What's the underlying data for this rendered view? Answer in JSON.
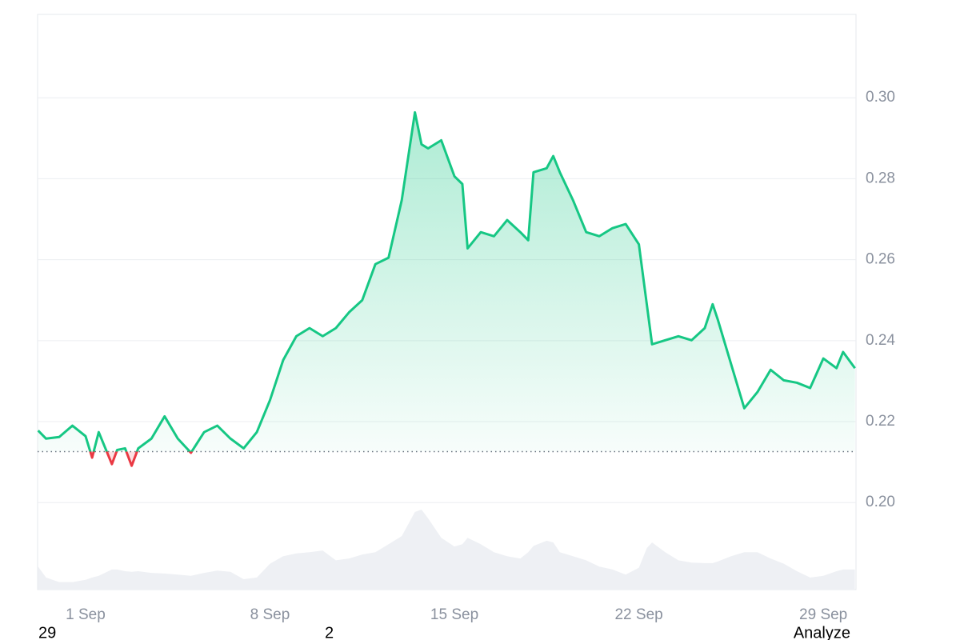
{
  "chart_data": {
    "type": "line",
    "x": [
      -0.8,
      -0.5,
      0,
      0.5,
      1,
      1.25,
      1.5,
      2,
      2.2,
      2.5,
      2.75,
      3,
      3.5,
      4,
      4.5,
      5,
      5.5,
      6,
      6.5,
      7,
      7.5,
      8,
      8.5,
      9,
      9.5,
      10,
      10.5,
      11,
      11.5,
      12,
      12.5,
      13,
      13.5,
      13.75,
      14,
      14.5,
      15,
      15.3,
      15.5,
      16,
      16.5,
      17,
      17.5,
      17.8,
      18,
      18.5,
      18.75,
      19,
      19.5,
      20,
      20.5,
      21,
      21.5,
      22,
      22.3,
      22.5,
      23,
      23.5,
      24,
      24.5,
      24.8,
      25,
      25.5,
      26,
      26.5,
      27,
      27.5,
      28,
      28.5,
      29,
      29.5,
      29.75,
      30.2
    ],
    "xlim": [
      -0.82,
      30.24
    ],
    "xticks": [
      {
        "value": 1,
        "label": "1 Sep"
      },
      {
        "value": 8,
        "label": "8 Sep"
      },
      {
        "value": 15,
        "label": "15 Sep"
      },
      {
        "value": 22,
        "label": "22 Sep"
      },
      {
        "value": 29,
        "label": "29 Sep"
      }
    ],
    "ylim": [
      0.1785,
      0.3206
    ],
    "yticks": [
      {
        "value": 0.2,
        "label": "0.20"
      },
      {
        "value": 0.22,
        "label": "0.22"
      },
      {
        "value": 0.24,
        "label": "0.24"
      },
      {
        "value": 0.26,
        "label": "0.26"
      },
      {
        "value": 0.28,
        "label": "0.28"
      },
      {
        "value": 0.3,
        "label": "0.30"
      }
    ],
    "grid": true,
    "baseline": 0.2126,
    "y2lim": [
      0,
      100
    ],
    "series": [
      {
        "color": "#16c784",
        "color_below": "#ea3943",
        "values": [
          0.2178,
          0.2158,
          0.2162,
          0.219,
          0.2164,
          0.2111,
          0.2174,
          0.2095,
          0.213,
          0.2134,
          0.2091,
          0.2134,
          0.2158,
          0.2213,
          0.2158,
          0.2123,
          0.2174,
          0.219,
          0.2158,
          0.2134,
          0.2174,
          0.2253,
          0.2352,
          0.2411,
          0.2431,
          0.2411,
          0.2431,
          0.247,
          0.25,
          0.2589,
          0.2605,
          0.2747,
          0.2964,
          0.2885,
          0.2875,
          0.2895,
          0.2806,
          0.2787,
          0.2628,
          0.2668,
          0.2658,
          0.2698,
          0.2668,
          0.2648,
          0.2816,
          0.2826,
          0.2856,
          0.2816,
          0.2747,
          0.2668,
          0.2658,
          0.2678,
          0.2688,
          0.2638,
          0.249,
          0.2391,
          0.2401,
          0.2411,
          0.2401,
          0.2431,
          0.249,
          0.2451,
          0.2342,
          0.2233,
          0.2273,
          0.2328,
          0.2302,
          0.2296,
          0.2283,
          0.2356,
          0.2332,
          0.2372,
          0.2332
        ]
      },
      {
        "type": "area",
        "axis": "y2",
        "color": "#eef0f4",
        "values": [
          4.0,
          2.1,
          1.3,
          1.3,
          1.7,
          2.1,
          2.4,
          3.5,
          3.5,
          3.2,
          3.1,
          3.2,
          2.9,
          2.8,
          2.6,
          2.4,
          2.9,
          3.3,
          3.1,
          1.8,
          2.1,
          4.5,
          5.8,
          6.3,
          6.5,
          6.8,
          5.1,
          5.4,
          6.1,
          6.5,
          7.9,
          9.3,
          13.5,
          13.9,
          12.4,
          9.0,
          7.5,
          7.9,
          9.0,
          7.9,
          6.5,
          5.8,
          5.4,
          6.5,
          7.6,
          8.5,
          8.2,
          6.5,
          5.8,
          5.1,
          4.0,
          3.5,
          2.6,
          3.8,
          7.2,
          8.2,
          6.5,
          5.1,
          4.7,
          4.6,
          4.6,
          4.9,
          5.8,
          6.5,
          6.5,
          5.4,
          4.5,
          3.2,
          2.1,
          2.4,
          3.2,
          3.5,
          3.5
        ]
      }
    ]
  },
  "footer": [
    "29",
    "2",
    "Analyze"
  ]
}
